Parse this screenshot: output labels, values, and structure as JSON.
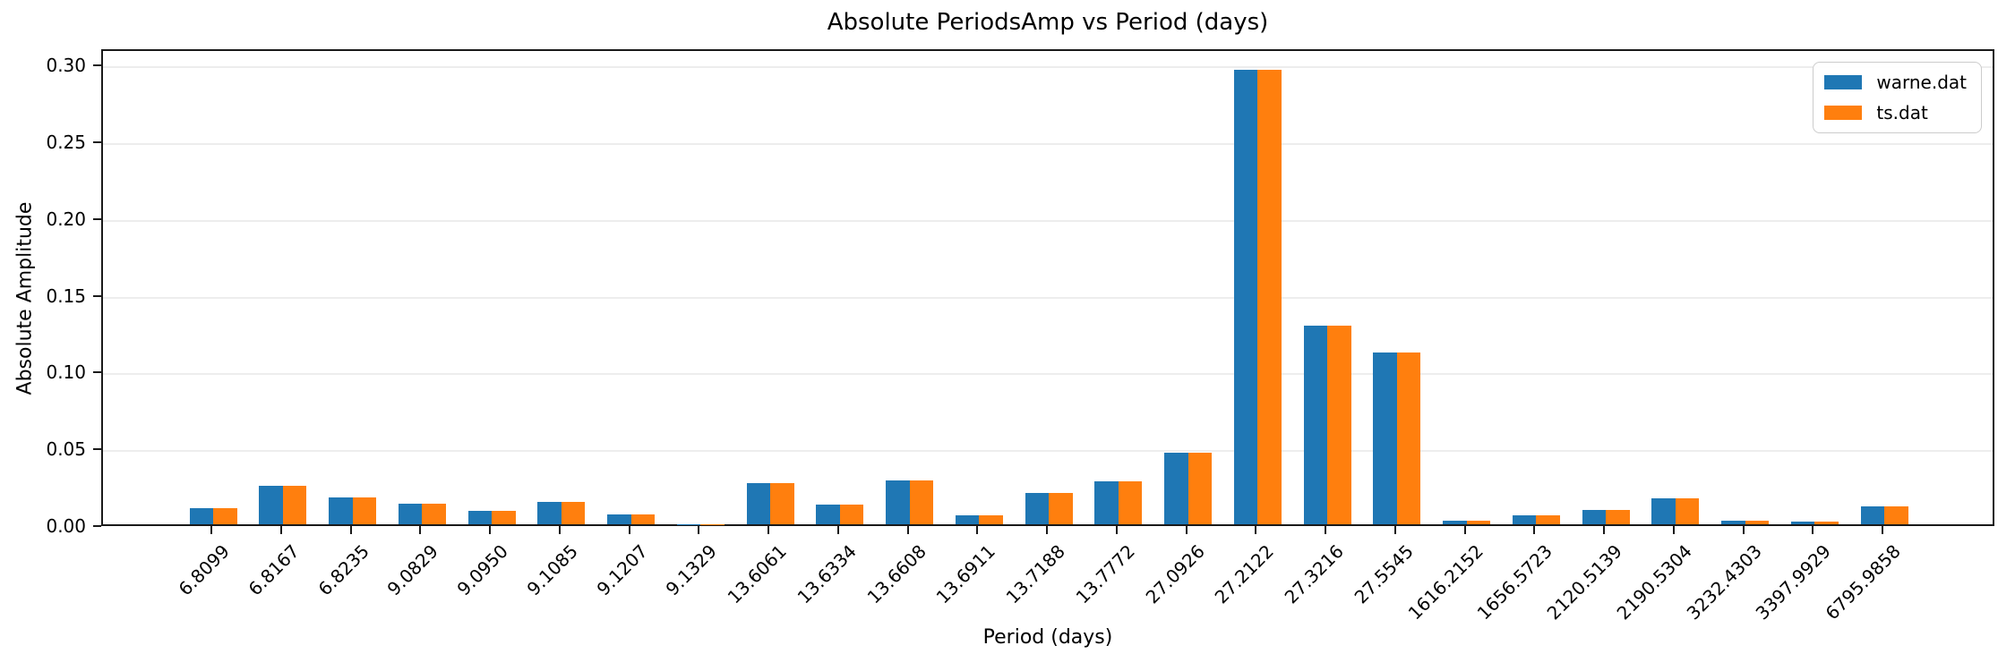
{
  "chart_data": {
    "type": "bar",
    "title": "Absolute PeriodsAmp vs Period (days)",
    "xlabel": "Period (days)",
    "ylabel": "Absolute Amplitude",
    "categories": [
      "6.8099",
      "6.8167",
      "6.8235",
      "9.0829",
      "9.0950",
      "9.1085",
      "9.1207",
      "9.1329",
      "13.6061",
      "13.6334",
      "13.6608",
      "13.6911",
      "13.7188",
      "13.7772",
      "27.0926",
      "27.2122",
      "27.3216",
      "27.5545",
      "1616.2152",
      "1656.5723",
      "2120.5139",
      "2190.5304",
      "3232.4303",
      "3397.9929",
      "6795.9858"
    ],
    "series": [
      {
        "name": "warne.dat",
        "color": "#1f77b4",
        "values": [
          0.0104,
          0.025,
          0.0172,
          0.0133,
          0.0089,
          0.0145,
          0.0062,
          0.0002,
          0.027,
          0.0128,
          0.0283,
          0.0058,
          0.0205,
          0.0277,
          0.0468,
          0.2962,
          0.1293,
          0.112,
          0.0022,
          0.0056,
          0.0091,
          0.0167,
          0.0025,
          0.0019,
          0.0115
        ]
      },
      {
        "name": "ts.dat",
        "color": "#ff7f0e",
        "values": [
          0.0104,
          0.025,
          0.0172,
          0.0133,
          0.0089,
          0.0145,
          0.0062,
          0.0002,
          0.027,
          0.0128,
          0.0283,
          0.0058,
          0.0205,
          0.0277,
          0.0468,
          0.2962,
          0.1293,
          0.112,
          0.0022,
          0.0056,
          0.0091,
          0.0167,
          0.0025,
          0.0019,
          0.0115
        ]
      }
    ],
    "ylim": [
      0,
      0.3106
    ],
    "yticks": [
      {
        "value": 0.0,
        "label": "0.00"
      },
      {
        "value": 0.05,
        "label": "0.05"
      },
      {
        "value": 0.1,
        "label": "0.10"
      },
      {
        "value": 0.15,
        "label": "0.15"
      },
      {
        "value": 0.2,
        "label": "0.20"
      },
      {
        "value": 0.25,
        "label": "0.25"
      },
      {
        "value": 0.3,
        "label": "0.30"
      }
    ],
    "grid": true,
    "legend_position": "upper right",
    "x_tick_rotation": 45
  }
}
